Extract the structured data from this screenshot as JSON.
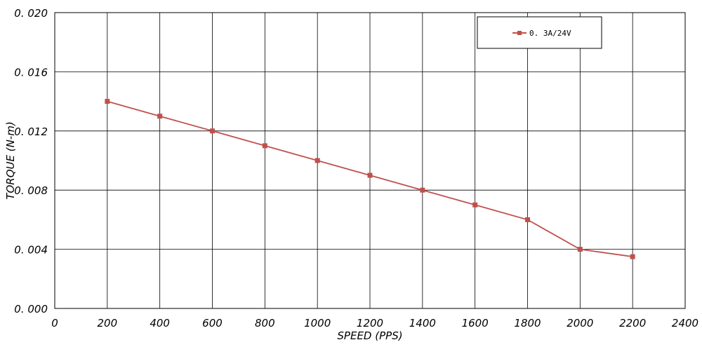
{
  "chart_data": {
    "type": "line",
    "title": "",
    "xlabel": "SPEED (PPS)",
    "ylabel": "TORQUE (N-m)",
    "xlim": [
      0,
      2400
    ],
    "ylim": [
      0,
      0.02
    ],
    "x_ticks": [
      0,
      200,
      400,
      600,
      800,
      1000,
      1200,
      1400,
      1600,
      1800,
      2000,
      2200,
      2400
    ],
    "x_tick_labels": [
      "0",
      "200",
      "400",
      "600",
      "800",
      "1000",
      "1200",
      "1400",
      "1600",
      "1800",
      "2000",
      "2200",
      "2400"
    ],
    "y_ticks": [
      0,
      0.004,
      0.008,
      0.012,
      0.016,
      0.02
    ],
    "y_tick_labels": [
      "0. 000",
      "0. 004",
      "0. 008",
      "0. 012",
      "0. 016",
      "0. 020"
    ],
    "grid": true,
    "legend_position": "top-right",
    "series": [
      {
        "name": "0. 3A/24V",
        "color": "#c0504d",
        "marker": "square",
        "x": [
          200,
          400,
          600,
          800,
          1000,
          1200,
          1400,
          1600,
          1800,
          2000,
          2200
        ],
        "y": [
          0.014,
          0.013,
          0.012,
          0.011,
          0.01,
          0.009,
          0.008,
          0.007,
          0.006,
          0.004,
          0.0035
        ]
      }
    ]
  }
}
